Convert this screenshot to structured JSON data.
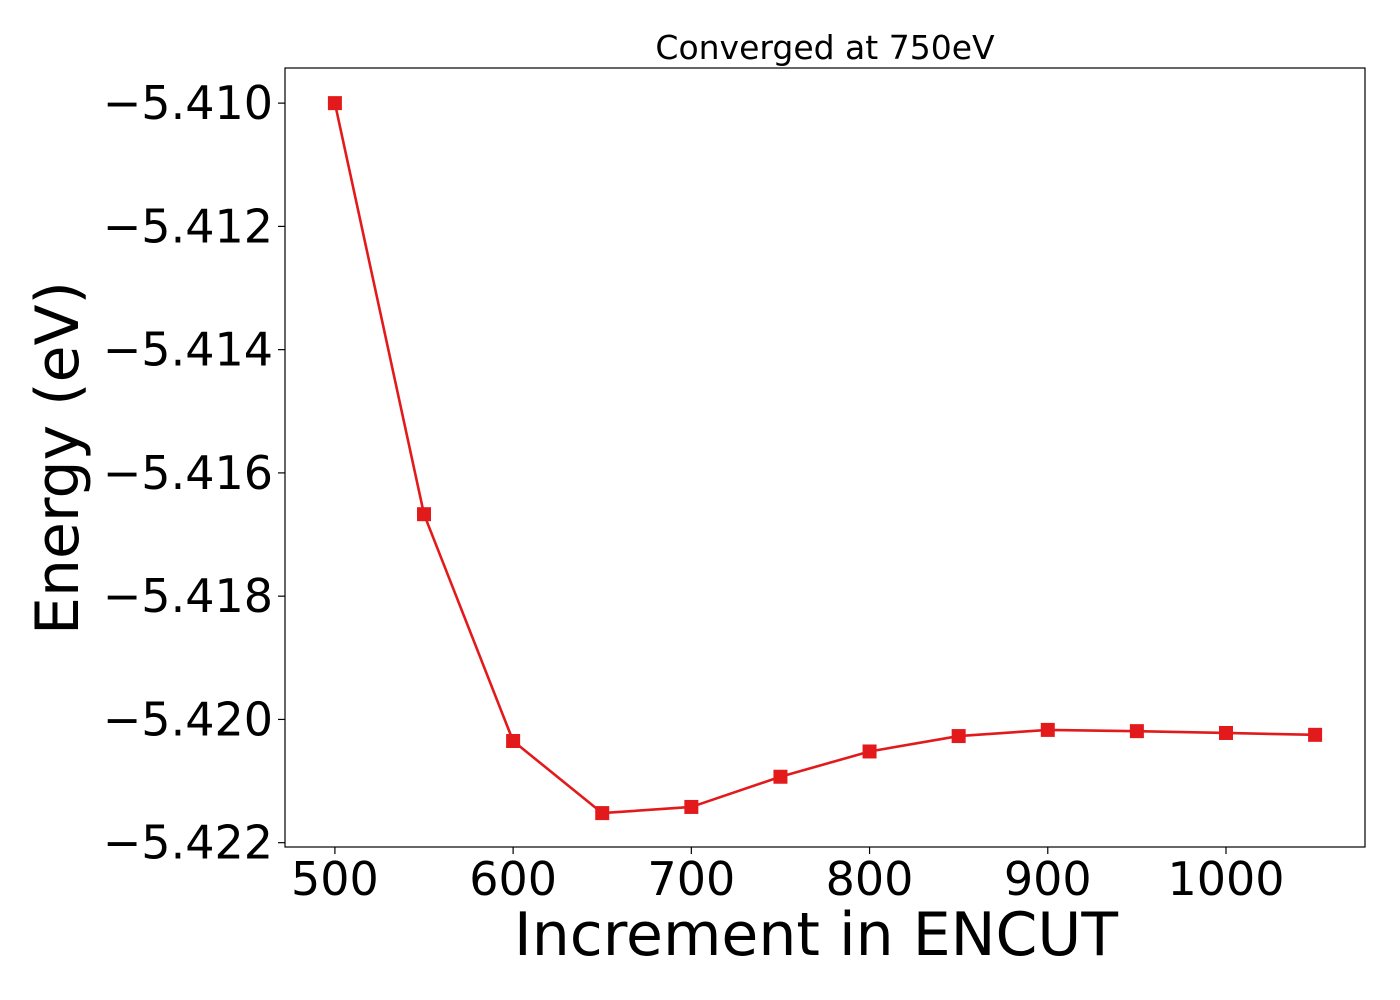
{
  "chart_data": {
    "type": "line",
    "title": "Converged at 750eV",
    "xlabel": "Increment in ENCUT",
    "ylabel": "Energy (eV)",
    "xlim": [
      472,
      1078
    ],
    "ylim": [
      -5.42207,
      -5.40943
    ],
    "x_ticks": [
      500,
      600,
      700,
      800,
      900,
      1000
    ],
    "x_tick_labels": [
      "500",
      "600",
      "700",
      "800",
      "900",
      "1000"
    ],
    "y_ticks": [
      -5.41,
      -5.412,
      -5.414,
      -5.416,
      -5.418,
      -5.42,
      -5.422
    ],
    "y_tick_labels": [
      "−5.410",
      "−5.412",
      "−5.414",
      "−5.416",
      "−5.418",
      "−5.420",
      "−5.422"
    ],
    "grid": false,
    "series": [
      {
        "color": "#e31a1c",
        "marker": "square",
        "x": [
          500,
          550,
          600,
          650,
          700,
          750,
          800,
          850,
          900,
          950,
          1000,
          1050
        ],
        "y": [
          -5.41,
          -5.41667,
          -5.42035,
          -5.42152,
          -5.42142,
          -5.42093,
          -5.42052,
          -5.42027,
          -5.42017,
          -5.42019,
          -5.42022,
          -5.42025
        ]
      }
    ]
  }
}
